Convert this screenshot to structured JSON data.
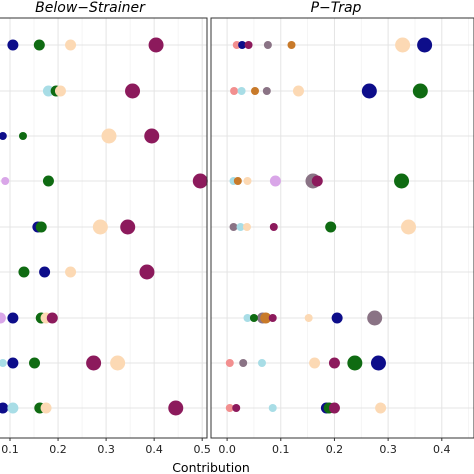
{
  "chart_data": {
    "type": "scatter",
    "xlabel": "Contribution",
    "x_tick_labels": [
      "0.1",
      "0.2",
      "0.3",
      "0.4",
      "0.5"
    ],
    "x_ticks": [
      0.1,
      0.2,
      0.3,
      0.4,
      0.5
    ],
    "x_tick_labels_right": [
      "0.0",
      "0.1",
      "0.2",
      "0.3",
      "0.4"
    ],
    "x_ticks_right": [
      0.0,
      0.1,
      0.2,
      0.3,
      0.4
    ],
    "xlim_left": [
      0.075,
      0.51
    ],
    "xlim_right": [
      -0.03,
      0.46
    ],
    "grid": true,
    "row_count": 9,
    "palette": {
      "navy": "#0d0d8a",
      "green": "#0f6b12",
      "maroon": "#8c1a5c",
      "peach": "#fcd9b4",
      "lightblue": "#a8dde6",
      "lavender": "#d9a6e8",
      "salmon": "#f28f8f",
      "taupe": "#8a7385",
      "orange": "#c87a2a"
    },
    "panels": [
      {
        "title": "Below−Strainer",
        "points": [
          {
            "row": 0,
            "x": 0.106,
            "color": "navy",
            "size": 1
          },
          {
            "row": 0,
            "x": 0.161,
            "color": "green",
            "size": 1
          },
          {
            "row": 0,
            "x": 0.226,
            "color": "peach",
            "size": 1
          },
          {
            "row": 0,
            "x": 0.404,
            "color": "maroon",
            "size": 2
          },
          {
            "row": 1,
            "x": 0.18,
            "color": "lightblue",
            "size": 1
          },
          {
            "row": 1,
            "x": 0.196,
            "color": "green",
            "size": 1
          },
          {
            "row": 1,
            "x": 0.205,
            "color": "peach",
            "size": 1
          },
          {
            "row": 1,
            "x": 0.355,
            "color": "maroon",
            "size": 2
          },
          {
            "row": 2,
            "x": 0.085,
            "color": "navy",
            "size": 0
          },
          {
            "row": 2,
            "x": 0.127,
            "color": "green",
            "size": 0
          },
          {
            "row": 2,
            "x": 0.306,
            "color": "peach",
            "size": 2
          },
          {
            "row": 2,
            "x": 0.395,
            "color": "maroon",
            "size": 2
          },
          {
            "row": 3,
            "x": 0.09,
            "color": "lavender",
            "size": 0
          },
          {
            "row": 3,
            "x": 0.18,
            "color": "green",
            "size": 1
          },
          {
            "row": 3,
            "x": 0.496,
            "color": "maroon",
            "size": 2
          },
          {
            "row": 4,
            "x": 0.158,
            "color": "navy",
            "size": 1
          },
          {
            "row": 4,
            "x": 0.165,
            "color": "green",
            "size": 1
          },
          {
            "row": 4,
            "x": 0.288,
            "color": "peach",
            "size": 2
          },
          {
            "row": 4,
            "x": 0.345,
            "color": "maroon",
            "size": 2
          },
          {
            "row": 5,
            "x": 0.129,
            "color": "green",
            "size": 1
          },
          {
            "row": 5,
            "x": 0.172,
            "color": "navy",
            "size": 1
          },
          {
            "row": 5,
            "x": 0.226,
            "color": "peach",
            "size": 1
          },
          {
            "row": 5,
            "x": 0.385,
            "color": "maroon",
            "size": 2
          },
          {
            "row": 6,
            "x": 0.08,
            "color": "lavender",
            "size": 1
          },
          {
            "row": 6,
            "x": 0.106,
            "color": "navy",
            "size": 1
          },
          {
            "row": 6,
            "x": 0.165,
            "color": "green",
            "size": 1
          },
          {
            "row": 6,
            "x": 0.175,
            "color": "peach",
            "size": 1
          },
          {
            "row": 6,
            "x": 0.188,
            "color": "maroon",
            "size": 1
          },
          {
            "row": 7,
            "x": 0.085,
            "color": "lightblue",
            "size": 0
          },
          {
            "row": 7,
            "x": 0.106,
            "color": "navy",
            "size": 1
          },
          {
            "row": 7,
            "x": 0.151,
            "color": "green",
            "size": 1
          },
          {
            "row": 7,
            "x": 0.274,
            "color": "maroon",
            "size": 2
          },
          {
            "row": 7,
            "x": 0.324,
            "color": "peach",
            "size": 2
          },
          {
            "row": 8,
            "x": 0.085,
            "color": "navy",
            "size": 1
          },
          {
            "row": 8,
            "x": 0.106,
            "color": "lightblue",
            "size": 1
          },
          {
            "row": 8,
            "x": 0.162,
            "color": "green",
            "size": 1
          },
          {
            "row": 8,
            "x": 0.175,
            "color": "peach",
            "size": 1
          },
          {
            "row": 8,
            "x": 0.445,
            "color": "maroon",
            "size": 2
          }
        ]
      },
      {
        "title": "P−Trap",
        "points": [
          {
            "row": 0,
            "x": 0.018,
            "color": "salmon",
            "size": 0
          },
          {
            "row": 0,
            "x": 0.028,
            "color": "navy",
            "size": 0
          },
          {
            "row": 0,
            "x": 0.04,
            "color": "maroon",
            "size": 0
          },
          {
            "row": 0,
            "x": 0.076,
            "color": "taupe",
            "size": 0
          },
          {
            "row": 0,
            "x": 0.12,
            "color": "orange",
            "size": 0
          },
          {
            "row": 0,
            "x": 0.327,
            "color": "peach",
            "size": 2
          },
          {
            "row": 0,
            "x": 0.368,
            "color": "navy",
            "size": 2
          },
          {
            "row": 1,
            "x": 0.013,
            "color": "salmon",
            "size": 0
          },
          {
            "row": 1,
            "x": 0.027,
            "color": "lightblue",
            "size": 0
          },
          {
            "row": 1,
            "x": 0.052,
            "color": "orange",
            "size": 0
          },
          {
            "row": 1,
            "x": 0.074,
            "color": "taupe",
            "size": 0
          },
          {
            "row": 1,
            "x": 0.133,
            "color": "peach",
            "size": 1
          },
          {
            "row": 1,
            "x": 0.265,
            "color": "navy",
            "size": 2
          },
          {
            "row": 1,
            "x": 0.36,
            "color": "green",
            "size": 2
          },
          {
            "row": 3,
            "x": 0.012,
            "color": "lightblue",
            "size": 0
          },
          {
            "row": 3,
            "x": 0.02,
            "color": "orange",
            "size": 0
          },
          {
            "row": 3,
            "x": 0.038,
            "color": "peach",
            "size": 0
          },
          {
            "row": 3,
            "x": 0.09,
            "color": "lavender",
            "size": 1
          },
          {
            "row": 3,
            "x": 0.16,
            "color": "taupe",
            "size": 2
          },
          {
            "row": 3,
            "x": 0.168,
            "color": "maroon",
            "size": 1
          },
          {
            "row": 3,
            "x": 0.325,
            "color": "green",
            "size": 2
          },
          {
            "row": 4,
            "x": 0.012,
            "color": "taupe",
            "size": 0
          },
          {
            "row": 4,
            "x": 0.025,
            "color": "lightblue",
            "size": 0
          },
          {
            "row": 4,
            "x": 0.037,
            "color": "peach",
            "size": 0
          },
          {
            "row": 4,
            "x": 0.087,
            "color": "maroon",
            "size": 0
          },
          {
            "row": 4,
            "x": 0.193,
            "color": "green",
            "size": 1
          },
          {
            "row": 4,
            "x": 0.338,
            "color": "peach",
            "size": 2
          },
          {
            "row": 6,
            "x": 0.038,
            "color": "lightblue",
            "size": 0
          },
          {
            "row": 6,
            "x": 0.05,
            "color": "green",
            "size": 0
          },
          {
            "row": 6,
            "x": 0.066,
            "color": "taupe",
            "size": 1
          },
          {
            "row": 6,
            "x": 0.072,
            "color": "orange",
            "size": 1
          },
          {
            "row": 6,
            "x": 0.085,
            "color": "maroon",
            "size": 0
          },
          {
            "row": 6,
            "x": 0.152,
            "color": "peach",
            "size": 0
          },
          {
            "row": 6,
            "x": 0.205,
            "color": "navy",
            "size": 1
          },
          {
            "row": 6,
            "x": 0.275,
            "color": "taupe",
            "size": 2
          },
          {
            "row": 7,
            "x": 0.005,
            "color": "salmon",
            "size": 0
          },
          {
            "row": 7,
            "x": 0.03,
            "color": "taupe",
            "size": 0
          },
          {
            "row": 7,
            "x": 0.065,
            "color": "lightblue",
            "size": 0
          },
          {
            "row": 7,
            "x": 0.163,
            "color": "peach",
            "size": 1
          },
          {
            "row": 7,
            "x": 0.2,
            "color": "maroon",
            "size": 1
          },
          {
            "row": 7,
            "x": 0.238,
            "color": "green",
            "size": 2
          },
          {
            "row": 7,
            "x": 0.282,
            "color": "navy",
            "size": 2
          },
          {
            "row": 8,
            "x": 0.005,
            "color": "salmon",
            "size": 0
          },
          {
            "row": 8,
            "x": 0.017,
            "color": "maroon",
            "size": 0
          },
          {
            "row": 8,
            "x": 0.085,
            "color": "lightblue",
            "size": 0
          },
          {
            "row": 8,
            "x": 0.185,
            "color": "navy",
            "size": 1
          },
          {
            "row": 8,
            "x": 0.19,
            "color": "green",
            "size": 1
          },
          {
            "row": 8,
            "x": 0.2,
            "color": "maroon",
            "size": 1
          },
          {
            "row": 8,
            "x": 0.286,
            "color": "peach",
            "size": 1
          }
        ]
      }
    ]
  }
}
